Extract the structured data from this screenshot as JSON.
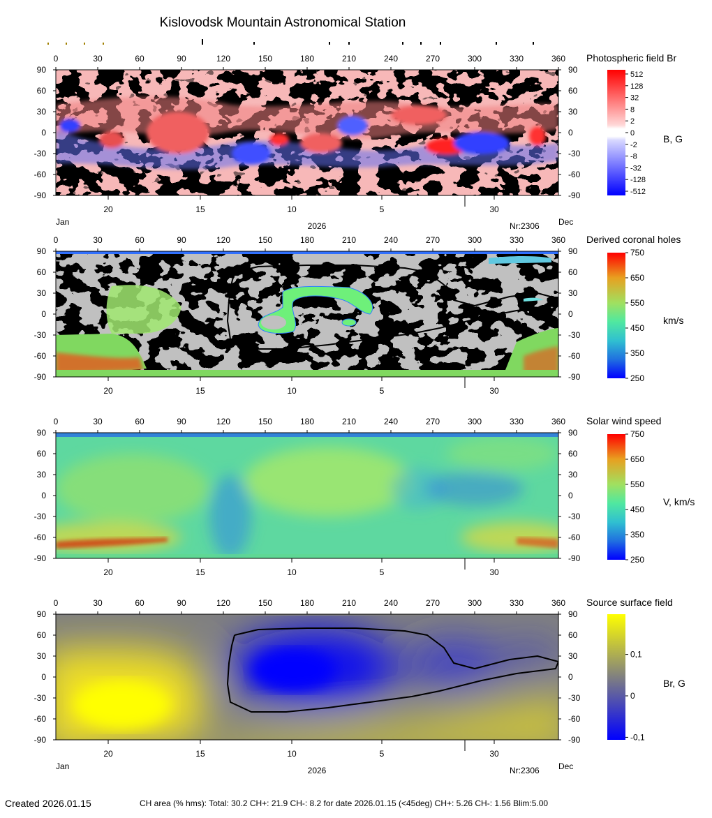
{
  "page": {
    "title": "Kislovodsk Mountain Astronomical Station",
    "created": "Created  2026.01.15",
    "footer": "CH area (% hms): Total: 30.2 CH+: 21.9   CH-: 8.2 for date 2026.01.15 (<45deg) CH+: 5.26    CH-: 1.56 Blim:5.00"
  },
  "colors": {
    "field_pos": "#ff2020",
    "field_neg": "#2030ff",
    "ch_gray_light": "#c0c0c0",
    "ch_gray_dark": "#808080",
    "ss_pos": "#ffff00",
    "ss_mid": "#808080",
    "ss_neg": "#0000ff",
    "contour": "#000000"
  },
  "chart_data": [
    {
      "type": "heatmap",
      "title": "Photospheric field Br",
      "unit": "B, G",
      "x_ticks": [
        "0",
        "30",
        "60",
        "90",
        "120",
        "150",
        "180",
        "210",
        "240",
        "270",
        "300",
        "330",
        "360"
      ],
      "y_ticks": [
        "90",
        "60",
        "30",
        "0",
        "-30",
        "-60",
        "-90"
      ],
      "xlim": [
        0,
        360
      ],
      "ylim": [
        -90,
        90
      ],
      "date_ticks": [
        "20",
        "15",
        "10",
        "5",
        "30"
      ],
      "date_left": "Jan",
      "date_right": "Dec",
      "year": "2026",
      "rotation": "Nr:2306",
      "colorbar_ticks": [
        "512",
        "128",
        "32",
        "8",
        "2",
        "0",
        "-2",
        "-8",
        "-32",
        "-128",
        "-512"
      ]
    },
    {
      "type": "heatmap",
      "title": "Derived coronal holes",
      "unit": "km/s",
      "x_ticks": [
        "0",
        "30",
        "60",
        "90",
        "120",
        "150",
        "180",
        "210",
        "240",
        "270",
        "300",
        "330",
        "360"
      ],
      "y_ticks": [
        "90",
        "60",
        "30",
        "0",
        "-30",
        "-60",
        "-90"
      ],
      "xlim": [
        0,
        360
      ],
      "ylim": [
        -90,
        90
      ],
      "date_ticks": [
        "20",
        "15",
        "10",
        "5",
        "30"
      ],
      "colorbar_ticks": [
        "750",
        "650",
        "550",
        "450",
        "350",
        "250"
      ],
      "colorbar_range": [
        250,
        750
      ]
    },
    {
      "type": "heatmap",
      "title": "Solar wind speed",
      "unit": "V, km/s",
      "x_ticks": [
        "0",
        "30",
        "60",
        "90",
        "120",
        "150",
        "180",
        "210",
        "240",
        "270",
        "300",
        "330",
        "360"
      ],
      "y_ticks": [
        "90",
        "60",
        "30",
        "0",
        "-30",
        "-60",
        "-90"
      ],
      "xlim": [
        0,
        360
      ],
      "ylim": [
        -90,
        90
      ],
      "date_ticks": [
        "20",
        "15",
        "10",
        "5",
        "30"
      ],
      "colorbar_ticks": [
        "750",
        "650",
        "550",
        "450",
        "350",
        "250"
      ],
      "colorbar_range": [
        250,
        750
      ]
    },
    {
      "type": "heatmap",
      "title": "Source surface field",
      "unit": "Br, G",
      "x_ticks": [
        "0",
        "30",
        "60",
        "90",
        "120",
        "150",
        "180",
        "210",
        "240",
        "270",
        "300",
        "330",
        "360"
      ],
      "y_ticks": [
        "90",
        "60",
        "30",
        "0",
        "-30",
        "-60",
        "-90"
      ],
      "xlim": [
        0,
        360
      ],
      "ylim": [
        -90,
        90
      ],
      "date_ticks": [
        "20",
        "15",
        "10",
        "5",
        "30"
      ],
      "date_left": "Jan",
      "date_right": "Dec",
      "year": "2026",
      "rotation": "Nr:2306",
      "colorbar_ticks": [
        "0,1",
        "0",
        "-0,1"
      ],
      "neutral_line": [
        [
          128,
          60
        ],
        [
          145,
          68
        ],
        [
          180,
          70
        ],
        [
          215,
          70
        ],
        [
          250,
          66
        ],
        [
          266,
          60
        ],
        [
          278,
          42
        ],
        [
          285,
          20
        ],
        [
          300,
          12
        ],
        [
          325,
          25
        ],
        [
          345,
          30
        ],
        [
          360,
          22
        ],
        [
          358,
          12
        ],
        [
          330,
          5
        ],
        [
          305,
          -5
        ],
        [
          275,
          -20
        ],
        [
          255,
          -28
        ],
        [
          225,
          -36
        ],
        [
          195,
          -44
        ],
        [
          165,
          -50
        ],
        [
          140,
          -50
        ],
        [
          125,
          -36
        ],
        [
          123,
          -10
        ],
        [
          124,
          20
        ],
        [
          126,
          45
        ],
        [
          128,
          60
        ]
      ]
    }
  ]
}
